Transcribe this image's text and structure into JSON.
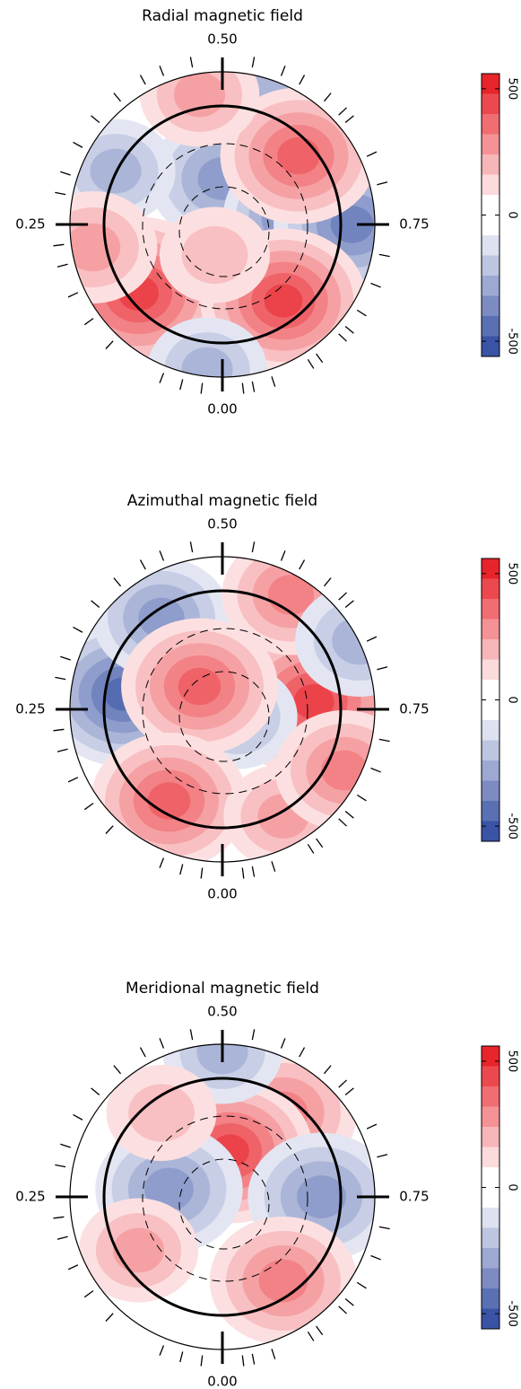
{
  "chart_data": [
    {
      "type": "polar-map",
      "title": "Radial magnetic field",
      "phase_ticks": [
        {
          "value": 0.5,
          "label": "0.50"
        },
        0.25,
        0.75,
        {
          "value": 0,
          "label": "0.00"
        }
      ],
      "obs_phases": [
        0.02,
        0.04,
        0.06,
        0.12,
        0.15,
        0.18,
        0.21,
        0.23,
        0.28,
        0.3,
        0.33,
        0.36,
        0.39,
        0.42,
        0.44,
        0.47,
        0.53,
        0.56,
        0.58,
        0.61,
        0.63,
        0.64,
        0.68,
        0.71,
        0.78,
        0.81,
        0.84,
        0.86,
        0.87,
        0.9,
        0.91,
        0.95,
        0.97,
        0.98
      ],
      "clim": [
        -560,
        560
      ],
      "cticks": [
        -500,
        0,
        500
      ],
      "spots": [
        {
          "x": 0.25,
          "y": -0.9,
          "value": -250
        },
        {
          "x": 0,
          "y": -0.3,
          "value": -350
        },
        {
          "x": 0.55,
          "y": -0.05,
          "value": -450
        },
        {
          "x": 0.85,
          "y": 0,
          "value": -400
        },
        {
          "x": 0.5,
          "y": -0.45,
          "value": 400
        },
        {
          "x": -0.15,
          "y": -0.85,
          "value": 200
        },
        {
          "x": -0.7,
          "y": -0.35,
          "value": -200
        },
        {
          "x": -0.55,
          "y": 0.45,
          "value": 500
        },
        {
          "x": -0.85,
          "y": 0.15,
          "value": 250
        },
        {
          "x": 0.4,
          "y": 0.5,
          "value": 450
        },
        {
          "x": -0.1,
          "y": 0.95,
          "value": -200
        },
        {
          "x": -0.05,
          "y": 0.2,
          "value": 150
        }
      ]
    },
    {
      "type": "polar-map",
      "title": "Azimuthal magnetic field",
      "phase_ticks": [
        {
          "value": 0.5,
          "label": "0.50"
        },
        0.25,
        0.75,
        {
          "value": 0,
          "label": "0.00"
        }
      ],
      "obs_phases": [
        0.02,
        0.04,
        0.06,
        0.12,
        0.15,
        0.18,
        0.21,
        0.23,
        0.28,
        0.3,
        0.33,
        0.36,
        0.39,
        0.42,
        0.44,
        0.47,
        0.53,
        0.56,
        0.58,
        0.61,
        0.63,
        0.64,
        0.68,
        0.71,
        0.78,
        0.81,
        0.84,
        0.86,
        0.87,
        0.9,
        0.91,
        0.95,
        0.97,
        0.98
      ],
      "clim": [
        -560,
        560
      ],
      "cticks": [
        -500,
        0,
        500
      ],
      "spots": [
        {
          "x": -0.65,
          "y": -0.1,
          "value": -450
        },
        {
          "x": -0.4,
          "y": -0.6,
          "value": -300
        },
        {
          "x": 0.6,
          "y": -0.05,
          "value": 500
        },
        {
          "x": 0.45,
          "y": -0.75,
          "value": 300
        },
        {
          "x": 0.1,
          "y": 0.05,
          "value": -200
        },
        {
          "x": -0.15,
          "y": -0.15,
          "value": 400
        },
        {
          "x": -0.35,
          "y": 0.6,
          "value": 400
        },
        {
          "x": 0.4,
          "y": 0.7,
          "value": 200
        },
        {
          "x": 0.9,
          "y": -0.45,
          "value": -250
        },
        {
          "x": 0.8,
          "y": 0.4,
          "value": 300
        }
      ]
    },
    {
      "type": "polar-map",
      "title": "Meridional magnetic field",
      "phase_ticks": [
        {
          "value": 0.5,
          "label": "0.50"
        },
        0.25,
        0.75,
        {
          "value": 0,
          "label": "0.00"
        }
      ],
      "obs_phases": [
        0.02,
        0.04,
        0.06,
        0.12,
        0.15,
        0.18,
        0.21,
        0.23,
        0.28,
        0.3,
        0.33,
        0.36,
        0.39,
        0.42,
        0.44,
        0.47,
        0.53,
        0.56,
        0.58,
        0.61,
        0.63,
        0.64,
        0.68,
        0.71,
        0.78,
        0.81,
        0.84,
        0.86,
        0.87,
        0.9,
        0.91,
        0.95,
        0.97,
        0.98
      ],
      "clim": [
        -560,
        560
      ],
      "cticks": [
        -500,
        0,
        500
      ],
      "spots": [
        {
          "x": 0.4,
          "y": -0.55,
          "value": 350
        },
        {
          "x": 0.05,
          "y": -0.3,
          "value": 450
        },
        {
          "x": 0,
          "y": -0.95,
          "value": -200
        },
        {
          "x": -0.35,
          "y": -0.05,
          "value": -350
        },
        {
          "x": 0.65,
          "y": 0,
          "value": -350
        },
        {
          "x": 0.4,
          "y": 0.55,
          "value": 350
        },
        {
          "x": -0.55,
          "y": 0.35,
          "value": 200
        },
        {
          "x": -0.4,
          "y": -0.55,
          "value": 150
        }
      ]
    }
  ]
}
